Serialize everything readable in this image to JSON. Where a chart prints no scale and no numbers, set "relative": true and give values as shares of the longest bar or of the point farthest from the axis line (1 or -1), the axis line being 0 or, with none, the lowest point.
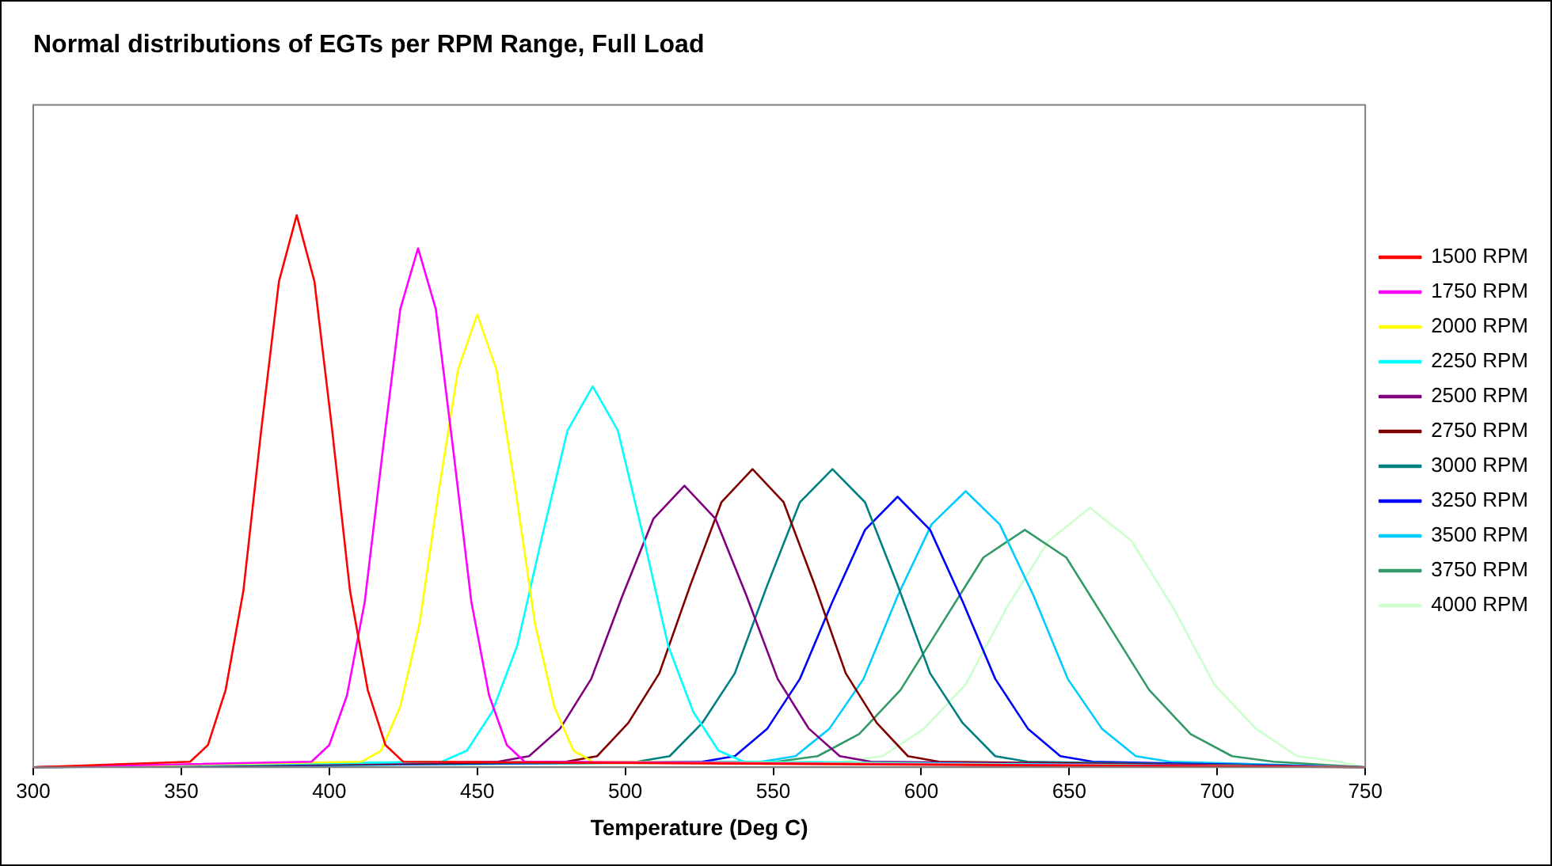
{
  "chart_data": {
    "type": "line",
    "title": "Normal distributions of EGTs per RPM Range, Full Load",
    "xlabel": "Temperature (Deg C)",
    "relative": true,
    "grid": false,
    "legend": "right",
    "marker": "none",
    "line_style": "solid",
    "xlim": [
      300,
      750
    ],
    "xticks": [
      300,
      350,
      400,
      450,
      500,
      550,
      600,
      650,
      700,
      750
    ],
    "series": [
      {
        "name": "1500 RPM",
        "color": "#ff0000",
        "x": [
          300,
          353,
          359,
          365,
          371,
          377,
          383,
          389,
          395,
          401,
          407,
          413,
          419,
          425,
          750
        ],
        "values": [
          0,
          0.01,
          0.04,
          0.14,
          0.32,
          0.61,
          0.88,
          1,
          0.88,
          0.61,
          0.32,
          0.14,
          0.04,
          0.01,
          0
        ]
      },
      {
        "name": "1750 RPM",
        "color": "#ff00ff",
        "x": [
          300,
          394,
          400,
          406,
          412,
          418,
          424,
          430,
          436,
          442,
          448,
          454,
          460,
          466,
          750
        ],
        "values": [
          0,
          0.01,
          0.04,
          0.13,
          0.3,
          0.57,
          0.83,
          0.94,
          0.83,
          0.57,
          0.3,
          0.13,
          0.04,
          0.01,
          0
        ]
      },
      {
        "name": "2000 RPM",
        "color": "#ffff00",
        "x": [
          300,
          411,
          417.5,
          424,
          430.5,
          437,
          443.5,
          450,
          456.5,
          463,
          469.5,
          476,
          482.5,
          489,
          750
        ],
        "values": [
          0,
          0.01,
          0.03,
          0.11,
          0.26,
          0.5,
          0.72,
          0.82,
          0.72,
          0.5,
          0.26,
          0.11,
          0.03,
          0.01,
          0
        ]
      },
      {
        "name": "2250 RPM",
        "color": "#00ffff",
        "x": [
          300,
          438,
          446.5,
          455,
          463.5,
          472,
          480.5,
          489,
          497.5,
          506,
          514.5,
          523,
          531.5,
          540,
          750
        ],
        "values": [
          0,
          0.01,
          0.03,
          0.1,
          0.22,
          0.42,
          0.61,
          0.69,
          0.61,
          0.42,
          0.22,
          0.1,
          0.03,
          0.01,
          0
        ]
      },
      {
        "name": "2500 RPM",
        "color": "#800080",
        "x": [
          300,
          457,
          467.5,
          478,
          488.5,
          499,
          509.5,
          520,
          530.5,
          541,
          551.5,
          562,
          572.5,
          583,
          750
        ],
        "values": [
          0,
          0.01,
          0.02,
          0.07,
          0.16,
          0.31,
          0.45,
          0.51,
          0.45,
          0.31,
          0.16,
          0.07,
          0.02,
          0.01,
          0
        ]
      },
      {
        "name": "2750 RPM",
        "color": "#800000",
        "x": [
          300,
          480,
          490.5,
          501,
          511.5,
          522,
          532.5,
          543,
          553.5,
          564,
          574.5,
          585,
          595.5,
          606,
          750
        ],
        "values": [
          0,
          0.01,
          0.02,
          0.08,
          0.17,
          0.33,
          0.48,
          0.54,
          0.48,
          0.33,
          0.17,
          0.08,
          0.02,
          0.01,
          0
        ]
      },
      {
        "name": "3000 RPM",
        "color": "#008080",
        "x": [
          300,
          504,
          515,
          526,
          537,
          548,
          559,
          570,
          581,
          592,
          603,
          614,
          625,
          636,
          750
        ],
        "values": [
          0,
          0.01,
          0.02,
          0.08,
          0.17,
          0.33,
          0.48,
          0.54,
          0.48,
          0.33,
          0.17,
          0.08,
          0.02,
          0.01,
          0
        ]
      },
      {
        "name": "3250 RPM",
        "color": "#0000ff",
        "x": [
          300,
          526,
          537,
          548,
          559,
          570,
          581,
          592,
          603,
          614,
          625,
          636,
          647,
          658,
          750
        ],
        "values": [
          0,
          0.01,
          0.02,
          0.07,
          0.16,
          0.3,
          0.43,
          0.49,
          0.43,
          0.3,
          0.16,
          0.07,
          0.02,
          0.01,
          0
        ]
      },
      {
        "name": "3500 RPM",
        "color": "#00ccff",
        "x": [
          300,
          546,
          557.5,
          569,
          580.5,
          592,
          603.5,
          615,
          626.5,
          638,
          649.5,
          661,
          672.5,
          684,
          750
        ],
        "values": [
          0,
          0.01,
          0.02,
          0.07,
          0.16,
          0.31,
          0.44,
          0.5,
          0.44,
          0.31,
          0.16,
          0.07,
          0.02,
          0.01,
          0
        ]
      },
      {
        "name": "3750 RPM",
        "color": "#339966",
        "x": [
          300,
          551,
          565,
          579,
          593,
          607,
          621,
          635,
          649,
          663,
          677,
          691,
          705,
          719,
          750
        ],
        "values": [
          0,
          0.01,
          0.02,
          0.06,
          0.14,
          0.26,
          0.38,
          0.43,
          0.38,
          0.26,
          0.14,
          0.06,
          0.02,
          0.01,
          0
        ]
      },
      {
        "name": "4000 RPM",
        "color": "#ccffcc",
        "x": [
          300,
          573,
          587,
          601,
          615,
          629,
          643,
          657,
          671,
          685,
          699,
          713,
          727,
          741,
          750
        ],
        "values": [
          0,
          0.01,
          0.02,
          0.07,
          0.15,
          0.29,
          0.41,
          0.47,
          0.41,
          0.29,
          0.15,
          0.07,
          0.02,
          0.01,
          0
        ]
      }
    ]
  }
}
